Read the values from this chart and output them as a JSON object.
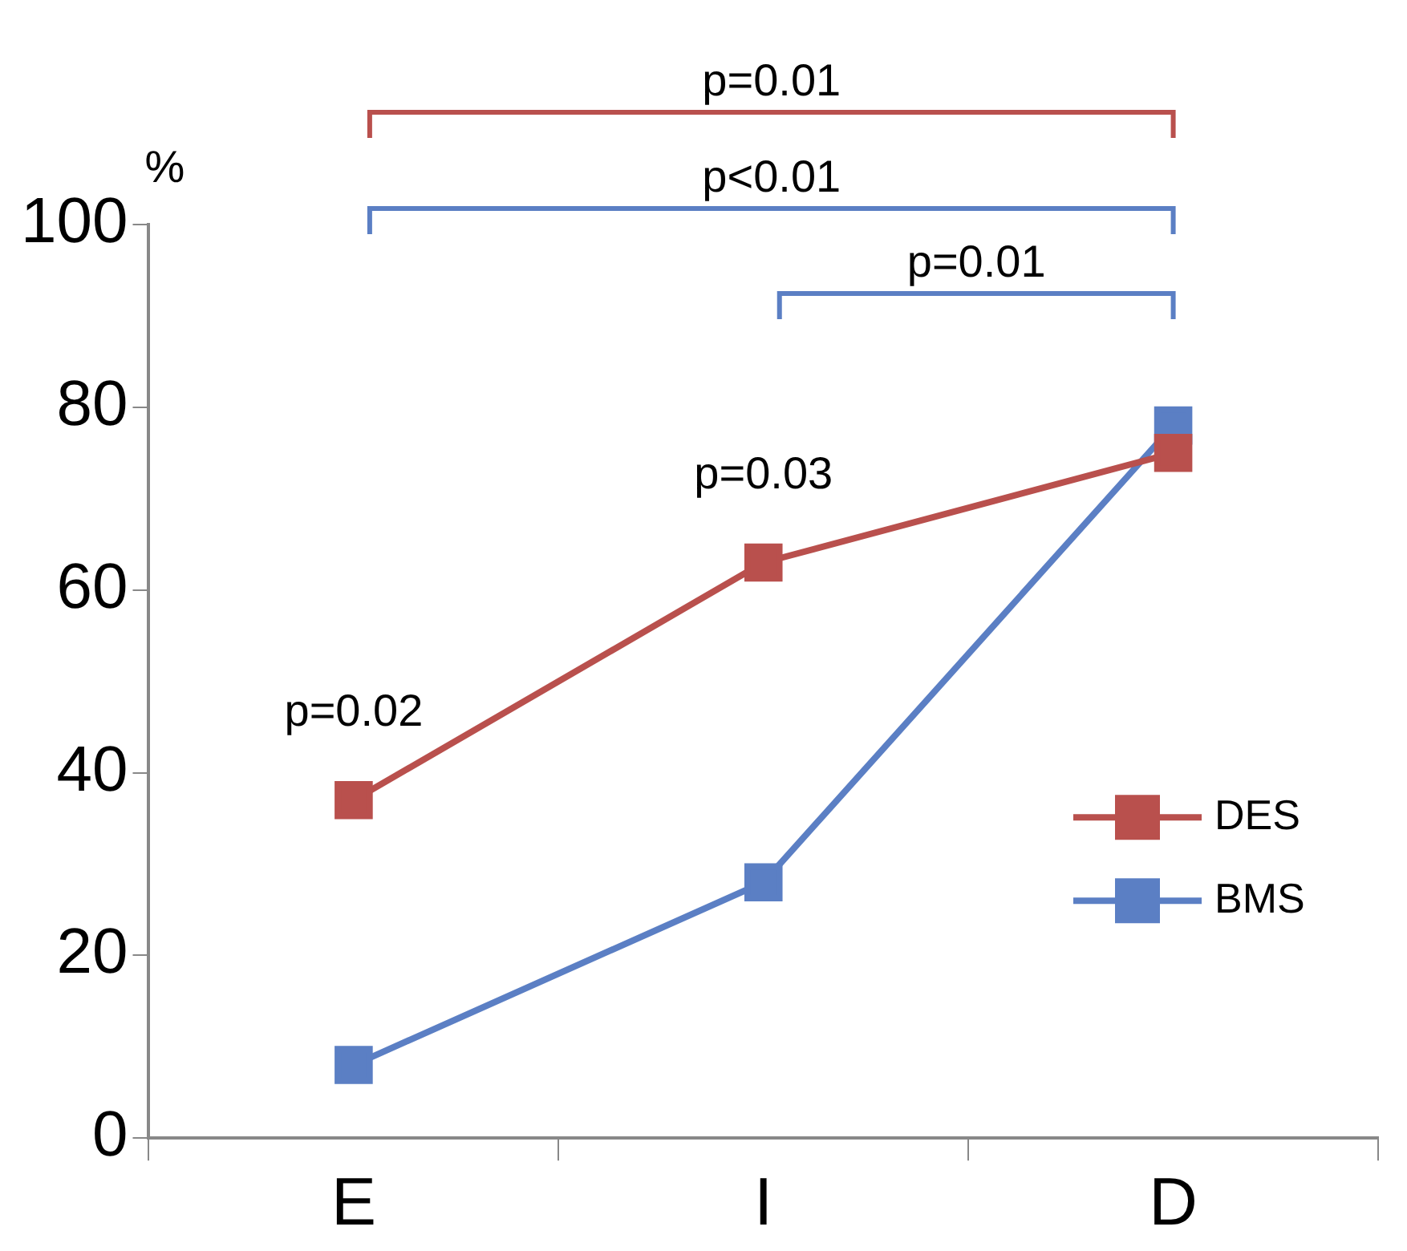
{
  "chart_data": {
    "type": "line",
    "ylabel": "%",
    "categories": [
      "E",
      "I",
      "D"
    ],
    "series": [
      {
        "name": "DES",
        "color": "#b9504d",
        "values": [
          37,
          63,
          75
        ]
      },
      {
        "name": "BMS",
        "color": "#5b7fc4",
        "values": [
          8,
          28,
          78
        ]
      }
    ],
    "ylim": [
      0,
      100
    ],
    "yticks": [
      0,
      20,
      40,
      60,
      80,
      100
    ],
    "marker": "square",
    "line_style": "solid",
    "legend": "bottom right",
    "annotations": [
      "p=0.01",
      "p<0.01",
      "p=0.01",
      "p=0.02",
      "p=0.03"
    ]
  }
}
